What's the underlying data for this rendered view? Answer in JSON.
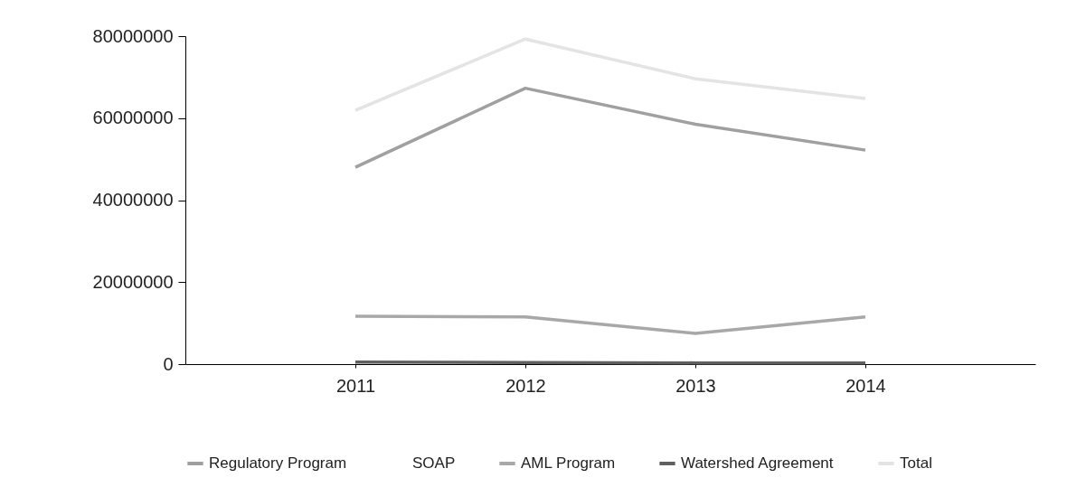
{
  "chart_data": {
    "type": "line",
    "x": [
      2011,
      2012,
      2013,
      2014
    ],
    "xlim": [
      2010,
      2015
    ],
    "xticks": [
      2011,
      2012,
      2013,
      2014
    ],
    "ylim": [
      0,
      80000000
    ],
    "yticks": [
      0,
      20000000,
      40000000,
      60000000,
      80000000
    ],
    "grid": false,
    "legend": "bottom",
    "marker": "none",
    "line_style": "solid",
    "series": [
      {
        "name": "Regulatory Program",
        "color": "#a0a0a0",
        "values": [
          48000000,
          67300000,
          58500000,
          52200000
        ]
      },
      {
        "name": "SOAP",
        "values": [
          null,
          null,
          null,
          null
        ]
      },
      {
        "name": "AML Program",
        "color": "#a8a8a8",
        "values": [
          11700000,
          11500000,
          7500000,
          11500000
        ]
      },
      {
        "name": "Watershed Agreement",
        "color": "#606060",
        "values": [
          500000,
          400000,
          300000,
          300000
        ]
      },
      {
        "name": "Total",
        "color": "#e4e4e4",
        "values": [
          61900000,
          79300000,
          69600000,
          64800000
        ]
      }
    ]
  }
}
